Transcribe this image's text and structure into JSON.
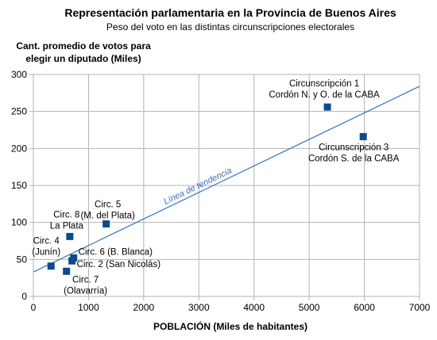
{
  "chart_data": {
    "type": "scatter",
    "title": "Representación parlamentaria en la Provincia de Buenos Aires",
    "subtitle": "Peso del voto en las distintas circunscripciones electorales",
    "ylabel": [
      "Cant. promedio de votos para",
      "elegir un diputado (Miles)"
    ],
    "xlabel": "POBLACIÓN (Miles de habitantes)",
    "xlim": [
      0,
      7000
    ],
    "ylim": [
      0,
      300
    ],
    "x_ticks": [
      "0",
      "1000",
      "2000",
      "3000",
      "4000",
      "5000",
      "6000",
      "7000"
    ],
    "y_ticks": [
      "0",
      "50",
      "100",
      "150",
      "200",
      "250",
      "300"
    ],
    "points": [
      {
        "x": 5330,
        "y": 256,
        "label": [
          "Circunscripción 1",
          "Cordón N. y O. de la CABA"
        ]
      },
      {
        "x": 5980,
        "y": 216,
        "label": [
          "Circunscripción 3",
          "Cordón S. de la CABA"
        ]
      },
      {
        "x": 1320,
        "y": 98,
        "label": [
          "Circ. 5",
          "(M. del Plata)"
        ]
      },
      {
        "x": 660,
        "y": 81,
        "label": [
          "Circ. 8",
          "La Plata"
        ]
      },
      {
        "x": 730,
        "y": 52,
        "label": [
          "Circ. 6 (B. Blanca)"
        ]
      },
      {
        "x": 700,
        "y": 48,
        "label": [
          "Circ. 2 (San Nicolás)"
        ]
      },
      {
        "x": 320,
        "y": 41,
        "label": [
          "Circ. 4",
          "(Junín)"
        ]
      },
      {
        "x": 600,
        "y": 34,
        "label": [
          "Circ. 7",
          "(Olavarría)"
        ]
      }
    ],
    "trendline": {
      "label": "Línea de tendencia",
      "x": [
        0,
        7000
      ],
      "y": [
        33,
        284
      ]
    },
    "marker_color": "#0d4a8c",
    "trend_color": "#3a72b8",
    "grid": true
  }
}
